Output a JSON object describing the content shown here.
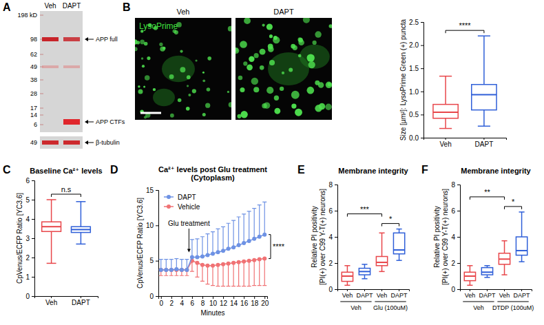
{
  "western_blot": {
    "panel_letter": "A",
    "lanes": [
      "Veh",
      "DAPT"
    ],
    "ladder": [
      "198 kD",
      "98",
      "62",
      "49",
      "38",
      "28",
      "17",
      "14",
      "6"
    ],
    "bands": [
      "APP full",
      "APP CTFs"
    ],
    "loading_control": {
      "label": "β-tubulin",
      "ladder": "49"
    }
  },
  "micrographs": {
    "panel_letter": "B",
    "stain": "LysoPrime",
    "conditions": [
      "Veh",
      "DAPT"
    ]
  },
  "chart_data": [
    {
      "type": "box",
      "y_label": "Size [µm²]: LysoPrime Green (+) puncta",
      "categories": [
        "Veh",
        "DAPT"
      ],
      "colors": [
        "#e8464a",
        "#2f5fd8"
      ],
      "boxes": [
        {
          "min": 0.2,
          "q1": 0.42,
          "median": 0.55,
          "q3": 0.72,
          "max": 1.33
        },
        {
          "min": 0.25,
          "q1": 0.6,
          "median": 0.93,
          "q3": 1.15,
          "max": 2.2
        }
      ],
      "ylim": [
        0,
        2.5
      ],
      "yticks": [
        {
          "value": 0,
          "label": "0.0"
        },
        0.5,
        {
          "value": 1,
          "label": "1.0"
        },
        1.5,
        {
          "value": 2,
          "label": "2.0"
        },
        2.5
      ],
      "annotations": [
        {
          "text": "****",
          "from": 0,
          "to": 1
        }
      ]
    },
    {
      "type": "box",
      "panel_letter": "C",
      "title": "Baseline Ca²⁺ levels",
      "y_label": "CpVenus/ECFP Ratio [YC3.6]",
      "categories": [
        "Veh",
        "DAPT"
      ],
      "colors": [
        "#e8464a",
        "#2f5fd8"
      ],
      "boxes": [
        {
          "min": 1.7,
          "q1": 3.35,
          "median": 3.6,
          "q3": 3.85,
          "max": 5.0
        },
        {
          "min": 2.7,
          "q1": 3.3,
          "median": 3.45,
          "q3": 3.6,
          "max": 4.9
        }
      ],
      "ylim": [
        0,
        6
      ],
      "yticks": [
        0,
        1,
        2,
        3,
        4,
        5,
        6
      ],
      "annotations": [
        {
          "text": "n.s",
          "from": 0,
          "to": 1
        }
      ]
    },
    {
      "type": "line",
      "panel_letter": "D",
      "title": "Ca²⁺ levels post Glu treatment",
      "subtitle": "(Cytoplasm)",
      "x_label": "Minutes",
      "y_label": "CpVenus/ECFP Ratio [YC3.6]",
      "x": [
        0,
        1,
        2,
        3,
        4,
        5,
        6,
        7,
        8,
        9,
        10,
        11,
        12,
        13,
        14,
        15,
        16,
        17,
        18,
        19,
        20
      ],
      "series": [
        {
          "name": "DAPT",
          "color": "#6e92e4",
          "marker": "circle",
          "values": [
            3.7,
            3.7,
            3.7,
            3.8,
            3.7,
            3.7,
            5.5,
            5.5,
            5.6,
            5.8,
            6.0,
            6.2,
            6.4,
            6.7,
            6.9,
            7.2,
            7.5,
            7.8,
            8.1,
            8.4,
            8.7
          ],
          "errors": [
            1.5,
            1.5,
            1.5,
            1.5,
            1.5,
            1.5,
            2.5,
            2.6,
            2.8,
            3.0,
            3.1,
            3.3,
            3.4,
            3.6,
            3.8,
            4.0,
            4.1,
            4.2,
            4.3,
            4.5,
            4.6
          ]
        },
        {
          "name": "Vehicle",
          "color": "#f07274",
          "marker": "circle",
          "values": [
            3.7,
            3.7,
            3.7,
            3.7,
            3.7,
            3.7,
            5.0,
            4.7,
            4.4,
            4.3,
            4.3,
            4.4,
            4.5,
            4.6,
            4.7,
            4.8,
            4.9,
            5.0,
            5.1,
            5.2,
            5.3
          ],
          "errors": [
            0.8,
            0.8,
            0.8,
            0.8,
            0.8,
            0.8,
            1.5,
            2.0,
            2.3,
            2.6,
            2.8,
            3.0,
            3.1,
            3.2,
            3.3,
            3.4,
            3.5,
            3.6,
            3.6,
            3.7,
            3.8
          ]
        }
      ],
      "xlim": [
        -0.5,
        20.5
      ],
      "xticks": [
        0,
        2,
        4,
        6,
        8,
        10,
        12,
        14,
        16,
        18,
        20
      ],
      "ylim": [
        0,
        15
      ],
      "yticks": [
        0,
        5,
        10,
        15
      ],
      "legend": "upper left",
      "annotations": [
        {
          "text": "Glu treatment",
          "x": 5.4
        },
        {
          "text": "****",
          "from": 0,
          "to": 1
        }
      ]
    },
    {
      "type": "box",
      "panel_letter": "E",
      "title": "Membrane integrity",
      "y_label": "Relative PI positivity [PI(+) over C99 Y-T(+) neurons]",
      "categories": [
        "Veh",
        "DAPT",
        "Veh",
        "DAPT"
      ],
      "groups": [
        "Veh",
        "Glu (100uM)"
      ],
      "colors": [
        "#e8464a",
        "#2f5fd8",
        "#e8464a",
        "#2f5fd8"
      ],
      "boxes": [
        {
          "min": 0.3,
          "q1": 0.6,
          "median": 1.0,
          "q3": 1.3,
          "max": 1.8
        },
        {
          "min": 0.8,
          "q1": 1.1,
          "median": 1.35,
          "q3": 1.6,
          "max": 1.9
        },
        {
          "min": 1.35,
          "q1": 1.8,
          "median": 2.05,
          "q3": 2.5,
          "max": 4.3
        },
        {
          "min": 2.2,
          "q1": 2.7,
          "median": 3.0,
          "q3": 4.3,
          "max": 4.6
        }
      ],
      "ylim": [
        0,
        8
      ],
      "yticks": [
        0,
        2,
        4,
        6,
        8
      ],
      "annotations": [
        {
          "text": "***",
          "from": 0,
          "to": 2
        },
        {
          "text": "*",
          "from": 2,
          "to": 3
        }
      ]
    },
    {
      "type": "box",
      "panel_letter": "F",
      "title": "Membrane integrity",
      "y_label": "Relative PI positivity [PI(+) over C99 Y-T(+) neurons]",
      "categories": [
        "Veh",
        "DAPT",
        "Veh",
        "DAPT"
      ],
      "groups": [
        "Veh",
        "DTDP (100uM)"
      ],
      "colors": [
        "#e8464a",
        "#2f5fd8",
        "#e8464a",
        "#2f5fd8"
      ],
      "boxes": [
        {
          "min": 0.3,
          "q1": 0.65,
          "median": 1.0,
          "q3": 1.3,
          "max": 1.8
        },
        {
          "min": 0.9,
          "q1": 1.1,
          "median": 1.3,
          "q3": 1.65,
          "max": 1.8
        },
        {
          "min": 1.1,
          "q1": 1.9,
          "median": 2.3,
          "q3": 2.75,
          "max": 3.7
        },
        {
          "min": 2.1,
          "q1": 2.6,
          "median": 2.95,
          "q3": 4.0,
          "max": 5.9
        }
      ],
      "ylim": [
        0,
        8
      ],
      "yticks": [
        0,
        2,
        4,
        6,
        8
      ],
      "annotations": [
        {
          "text": "**",
          "from": 0,
          "to": 2
        },
        {
          "text": "*",
          "from": 2,
          "to": 3
        }
      ]
    }
  ]
}
